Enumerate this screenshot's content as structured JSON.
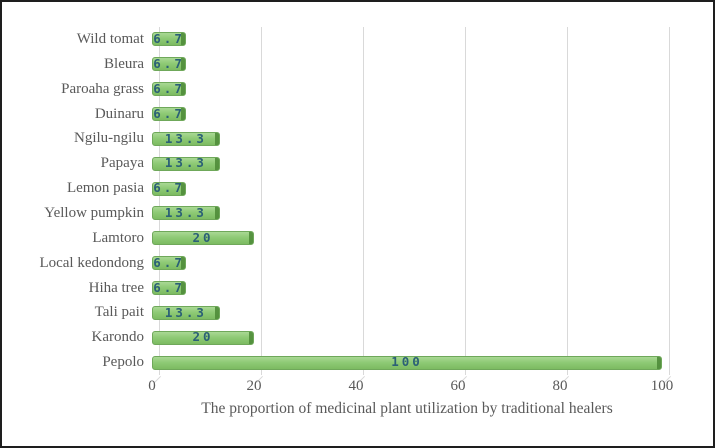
{
  "figure": {
    "background": "#ffffff",
    "border_color": "#1e1e1e"
  },
  "chart_data": {
    "type": "bar",
    "orientation": "horizontal",
    "title": "",
    "xlabel": "The proportion of medicinal plant utilization by traditional healers",
    "ylabel": "",
    "categories": [
      "Wild tomat",
      "Bleura",
      "Paroaha grass",
      "Duinaru",
      "Ngilu-ngilu",
      "Papaya",
      "Lemon pasia",
      "Yellow pumpkin",
      "Lamtoro",
      "Local kedondong",
      "Hiha tree",
      "Tali pait",
      "Karondo",
      "Pepolo"
    ],
    "values": [
      6.7,
      6.7,
      6.7,
      6.7,
      13.3,
      13.3,
      6.7,
      13.3,
      20,
      6.7,
      6.7,
      13.3,
      20,
      100
    ],
    "data_labels": [
      "6.7",
      "6.7",
      "6.7",
      "6.7",
      "13.3",
      "13.3",
      "6.7",
      "13.3",
      "20",
      "6.7",
      "6.7",
      "13.3",
      "20",
      "100"
    ],
    "x_ticks": [
      0,
      20,
      40,
      60,
      80,
      100
    ],
    "xlim": [
      0,
      100
    ],
    "grid": true,
    "legend": false,
    "style_3d_offset": true,
    "colors": {
      "bar_fill": "#8dc974",
      "bar_border": "#6fa85a",
      "bar_cap": "#4f8c3a",
      "data_label": "#2b6076",
      "axis_text": "#595959",
      "gridline": "#d9d9d9"
    }
  }
}
